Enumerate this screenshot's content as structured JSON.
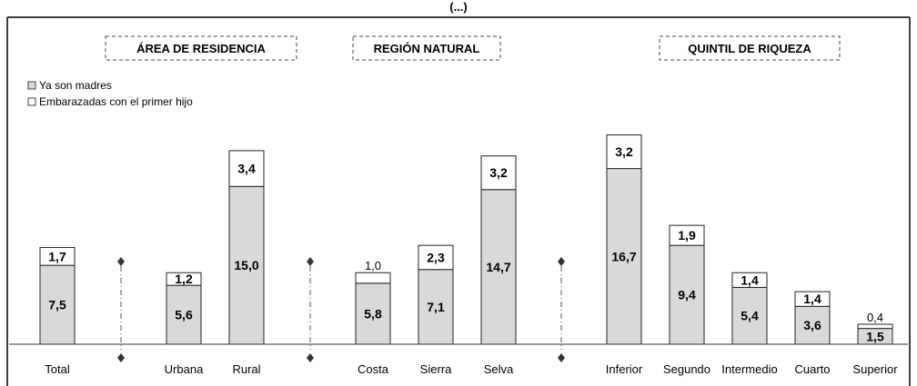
{
  "chart_data": {
    "type": "bar",
    "stacked": true,
    "title": "(...)",
    "categories": [
      "Total",
      "Urbana",
      "Rural",
      "Costa",
      "Sierra",
      "Selva",
      "Inferior",
      "Segundo",
      "Intermedio",
      "Cuarto",
      "Superior"
    ],
    "series": [
      {
        "name": "Ya son madres",
        "values": [
          7.5,
          5.6,
          15.0,
          5.8,
          7.1,
          14.7,
          16.7,
          9.4,
          5.4,
          3.6,
          1.5
        ],
        "labels": [
          "7,5",
          "5,6",
          "15,0",
          "5,8",
          "7,1",
          "14,7",
          "16,7",
          "9,4",
          "5,4",
          "3,6",
          "1,5"
        ],
        "color": "#d9d9d9"
      },
      {
        "name": "Embarazadas con el primer hijo",
        "values": [
          1.7,
          1.2,
          3.4,
          1.0,
          2.3,
          3.2,
          3.2,
          1.9,
          1.4,
          1.4,
          0.4
        ],
        "labels": [
          "1,7",
          "1,2",
          "3,4",
          "1,0",
          "2,3",
          "3,2",
          "3,2",
          "1,9",
          "1,4",
          "1,4",
          "0,4"
        ],
        "color": "#ffffff"
      }
    ],
    "groups": [
      {
        "label": "ÁREA DE RESIDENCIA",
        "categories": [
          "Urbana",
          "Rural"
        ]
      },
      {
        "label": "REGIÓN NATURAL",
        "categories": [
          "Costa",
          "Sierra",
          "Selva"
        ]
      },
      {
        "label": "QUINTIL DE RIQUEZA",
        "categories": [
          "Inferior",
          "Segundo",
          "Intermedio",
          "Cuarto",
          "Superior"
        ]
      }
    ],
    "legend_position": "top-left",
    "grid": false,
    "ylim": [
      0,
      21.5
    ]
  }
}
